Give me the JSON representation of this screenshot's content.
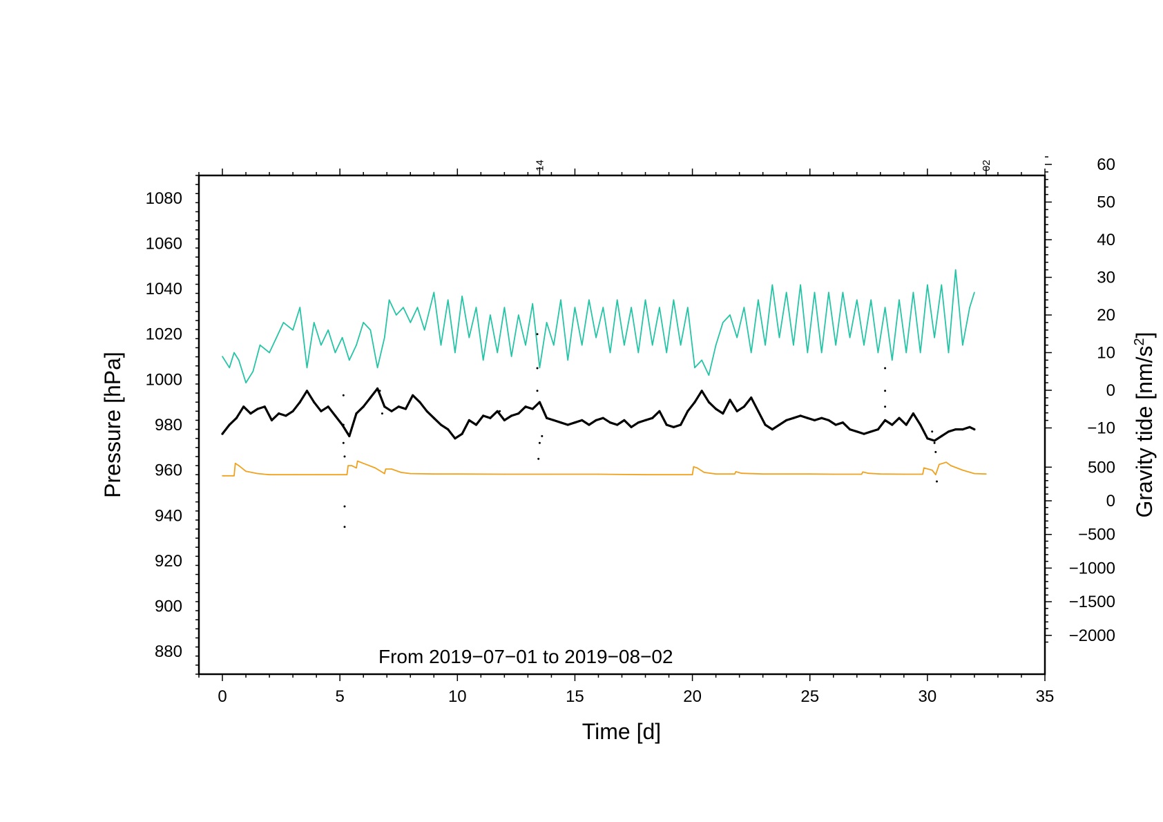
{
  "chart_data": {
    "type": "line",
    "xlabel": "Time [d]",
    "ylabel": "Pressure [hPa]",
    "y2label_main": "Gravity tide [nm/s",
    "y2label_sup": "2",
    "y2label_end": "]",
    "annotation": "From 2019-07-01 to 2019-08-02",
    "xlim": [
      -1,
      35
    ],
    "ylim": [
      870,
      1090
    ],
    "xticks": [
      0,
      5,
      10,
      15,
      20,
      25,
      30,
      35
    ],
    "yticks": [
      880,
      900,
      920,
      940,
      960,
      980,
      1000,
      1020,
      1040,
      1060,
      1080
    ],
    "y2_upper_ticks": [
      -10,
      0,
      10,
      20,
      30,
      40,
      50,
      60
    ],
    "y2_lower_ticks": [
      -2000,
      -1500,
      -1000,
      -500,
      0,
      500
    ],
    "top_axis_labels": [
      {
        "x": 13.5,
        "label": "14"
      },
      {
        "x": 32.5,
        "label": "02"
      }
    ],
    "colors": {
      "pressure": "#000000",
      "tide": "#26c4a6",
      "orange": "#f0a21e"
    },
    "series": [
      {
        "key": "tide",
        "x": [
          0,
          0.3,
          0.5,
          0.7,
          1.0,
          1.3,
          1.6,
          2.0,
          2.3,
          2.6,
          3.0,
          3.3,
          3.6,
          3.9,
          4.2,
          4.5,
          4.8,
          5.1,
          5.4,
          5.7,
          6.0,
          6.3,
          6.6,
          6.9,
          7.1,
          7.4,
          7.7,
          8.0,
          8.3,
          8.6,
          9.0,
          9.3,
          9.6,
          9.9,
          10.2,
          10.5,
          10.8,
          11.1,
          11.4,
          11.7,
          12.0,
          12.3,
          12.6,
          12.9,
          13.2,
          13.5,
          13.8,
          14.1,
          14.4,
          14.7,
          15.0,
          15.3,
          15.6,
          15.9,
          16.2,
          16.5,
          16.8,
          17.1,
          17.4,
          17.7,
          18.0,
          18.3,
          18.6,
          18.9,
          19.2,
          19.5,
          19.8,
          20.1,
          20.4,
          20.7,
          21.0,
          21.3,
          21.6,
          21.9,
          22.2,
          22.5,
          22.8,
          23.1,
          23.4,
          23.7,
          24.0,
          24.3,
          24.6,
          24.9,
          25.2,
          25.5,
          25.8,
          26.1,
          26.4,
          26.7,
          27.0,
          27.3,
          27.6,
          27.9,
          28.2,
          28.5,
          28.8,
          29.1,
          29.4,
          29.7,
          30.0,
          30.3,
          30.6,
          30.9,
          31.2,
          31.5,
          31.8,
          32.0
        ],
        "y": [
          9,
          6,
          10,
          8,
          2,
          5,
          12,
          10,
          14,
          18,
          16,
          22,
          6,
          18,
          12,
          16,
          10,
          14,
          8,
          12,
          18,
          16,
          6,
          14,
          24,
          20,
          22,
          18,
          22,
          16,
          26,
          12,
          24,
          10,
          25,
          14,
          22,
          8,
          20,
          10,
          22,
          9,
          20,
          12,
          23,
          6,
          18,
          12,
          24,
          8,
          22,
          12,
          24,
          14,
          22,
          10,
          24,
          12,
          22,
          10,
          24,
          12,
          22,
          10,
          24,
          12,
          22,
          6,
          8,
          4,
          12,
          18,
          20,
          14,
          22,
          10,
          24,
          12,
          28,
          14,
          26,
          12,
          28,
          10,
          26,
          10,
          26,
          12,
          26,
          14,
          24,
          12,
          24,
          10,
          22,
          8,
          24,
          10,
          26,
          10,
          28,
          14,
          28,
          10,
          32,
          12,
          22,
          26
        ]
      },
      {
        "key": "pressure",
        "x": [
          0,
          0.3,
          0.6,
          0.9,
          1.2,
          1.5,
          1.8,
          2.1,
          2.4,
          2.7,
          3.0,
          3.3,
          3.6,
          3.9,
          4.2,
          4.5,
          4.8,
          5.1,
          5.4,
          5.7,
          6.0,
          6.3,
          6.6,
          6.9,
          7.2,
          7.5,
          7.8,
          8.1,
          8.4,
          8.7,
          9.0,
          9.3,
          9.6,
          9.9,
          10.2,
          10.5,
          10.8,
          11.1,
          11.4,
          11.7,
          12.0,
          12.3,
          12.6,
          12.9,
          13.2,
          13.5,
          13.8,
          14.1,
          14.4,
          14.7,
          15.0,
          15.3,
          15.6,
          15.9,
          16.2,
          16.5,
          16.8,
          17.1,
          17.4,
          17.7,
          18.0,
          18.3,
          18.6,
          18.9,
          19.2,
          19.5,
          19.8,
          20.1,
          20.4,
          20.7,
          21.0,
          21.3,
          21.6,
          21.9,
          22.2,
          22.5,
          22.8,
          23.1,
          23.4,
          23.7,
          24.0,
          24.3,
          24.6,
          24.9,
          25.2,
          25.5,
          25.8,
          26.1,
          26.4,
          26.7,
          27.0,
          27.3,
          27.6,
          27.9,
          28.2,
          28.5,
          28.8,
          29.1,
          29.4,
          29.7,
          30.0,
          30.3,
          30.6,
          30.9,
          31.2,
          31.5,
          31.8,
          32.0
        ],
        "y": [
          976,
          980,
          983,
          988,
          985,
          987,
          988,
          982,
          985,
          984,
          986,
          990,
          995,
          990,
          986,
          988,
          984,
          980,
          975,
          985,
          988,
          992,
          996,
          988,
          986,
          988,
          987,
          993,
          990,
          986,
          983,
          980,
          978,
          974,
          976,
          982,
          980,
          984,
          983,
          986,
          982,
          984,
          985,
          988,
          987,
          990,
          983,
          982,
          981,
          980,
          981,
          982,
          980,
          982,
          983,
          981,
          980,
          982,
          979,
          981,
          982,
          983,
          986,
          980,
          979,
          980,
          986,
          990,
          995,
          990,
          987,
          985,
          991,
          986,
          988,
          992,
          986,
          980,
          978,
          980,
          982,
          983,
          984,
          983,
          982,
          983,
          982,
          980,
          981,
          978,
          977,
          976,
          977,
          978,
          982,
          980,
          983,
          980,
          985,
          980,
          974,
          973,
          975,
          977,
          978,
          978,
          979,
          978
        ],
        "outliers": [
          [
            5.15,
            993
          ],
          [
            5.15,
            980
          ],
          [
            5.15,
            972
          ],
          [
            5.2,
            966
          ],
          [
            5.2,
            944
          ],
          [
            5.2,
            935
          ],
          [
            6.7,
            995
          ],
          [
            6.8,
            985
          ],
          [
            11.8,
            986
          ],
          [
            13.4,
            1020
          ],
          [
            13.4,
            1005
          ],
          [
            13.4,
            995
          ],
          [
            13.45,
            965
          ],
          [
            13.5,
            972
          ],
          [
            13.6,
            975
          ],
          [
            28.2,
            1005
          ],
          [
            28.2,
            995
          ],
          [
            28.2,
            988
          ],
          [
            30.2,
            977
          ],
          [
            30.3,
            972
          ],
          [
            30.35,
            968
          ],
          [
            30.4,
            955
          ]
        ]
      },
      {
        "key": "orange",
        "x": [
          0,
          0.5,
          0.55,
          0.7,
          1.0,
          1.5,
          2.0,
          3.0,
          4.0,
          5.0,
          5.3,
          5.35,
          5.5,
          5.7,
          5.75,
          6.0,
          6.5,
          6.9,
          6.95,
          7.2,
          7.6,
          8.0,
          9.0,
          10.0,
          12.0,
          14.0,
          16.0,
          18.0,
          20.0,
          20.05,
          20.2,
          20.5,
          21.0,
          21.8,
          21.85,
          22.1,
          23.0,
          24.0,
          25.0,
          26.0,
          27.2,
          27.25,
          27.5,
          28.0,
          29.0,
          29.8,
          29.85,
          30.2,
          30.35,
          30.5,
          30.8,
          31.0,
          31.5,
          32.0,
          32.5
        ],
        "y": [
          957.5,
          957.5,
          963,
          962,
          959.5,
          958.5,
          958,
          958,
          958,
          958,
          958,
          962,
          962,
          961,
          964,
          963,
          961,
          958.5,
          960.5,
          960.5,
          959,
          958.5,
          958.3,
          958.3,
          958.2,
          958.2,
          958.2,
          958,
          958,
          961.5,
          961,
          959,
          958.3,
          958.3,
          959.3,
          958.6,
          958.3,
          958.3,
          958.3,
          958.2,
          958.2,
          959.2,
          958.6,
          958.3,
          958.2,
          958.2,
          961,
          960,
          958,
          962.5,
          963.5,
          962,
          960,
          958.5,
          958.3
        ]
      }
    ]
  }
}
